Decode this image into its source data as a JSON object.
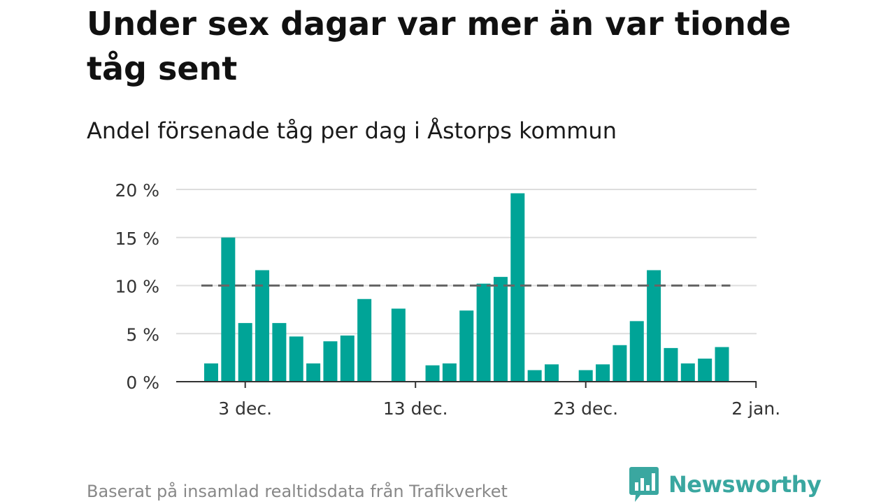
{
  "title": "Under sex dagar var mer än var tionde tåg sent",
  "subtitle": "Andel försenade tåg per dag i Åstorps kommun",
  "source": "Baserat på insamlad realtidsdata från Trafikverket",
  "brand": "Newsworthy",
  "colors": {
    "bar": "#00a497",
    "grid": "#dddddd",
    "axis": "#333333",
    "reference": "#666666",
    "brand": "#3aa7a0"
  },
  "chart_data": {
    "type": "bar",
    "x": [
      "2023-12-01",
      "2023-12-02",
      "2023-12-03",
      "2023-12-04",
      "2023-12-05",
      "2023-12-06",
      "2023-12-07",
      "2023-12-08",
      "2023-12-09",
      "2023-12-10",
      "2023-12-11",
      "2023-12-12",
      "2023-12-13",
      "2023-12-14",
      "2023-12-15",
      "2023-12-16",
      "2023-12-17",
      "2023-12-18",
      "2023-12-19",
      "2023-12-20",
      "2023-12-21",
      "2023-12-22",
      "2023-12-23",
      "2023-12-24",
      "2023-12-25",
      "2023-12-26",
      "2023-12-27",
      "2023-12-28",
      "2023-12-29",
      "2023-12-30",
      "2023-12-31"
    ],
    "values": [
      1.9,
      15.0,
      6.1,
      11.6,
      6.1,
      4.7,
      1.9,
      4.2,
      4.8,
      8.6,
      null,
      7.6,
      null,
      1.7,
      1.9,
      7.4,
      10.2,
      10.9,
      19.6,
      1.2,
      1.8,
      null,
      1.2,
      1.8,
      3.8,
      6.3,
      11.6,
      3.5,
      1.9,
      2.4,
      3.6
    ],
    "ylim": [
      0,
      20
    ],
    "yticks": [
      0,
      5,
      10,
      15,
      20
    ],
    "ytick_labels": [
      "0 %",
      "5 %",
      "10 %",
      "15 %",
      "20 %"
    ],
    "xticks": [
      "2023-12-03",
      "2023-12-13",
      "2023-12-23",
      "2024-01-02"
    ],
    "xtick_labels": [
      "3 dec.",
      "13 dec.",
      "23 dec.",
      "2 jan."
    ],
    "reference_line": 10,
    "grid": true
  }
}
